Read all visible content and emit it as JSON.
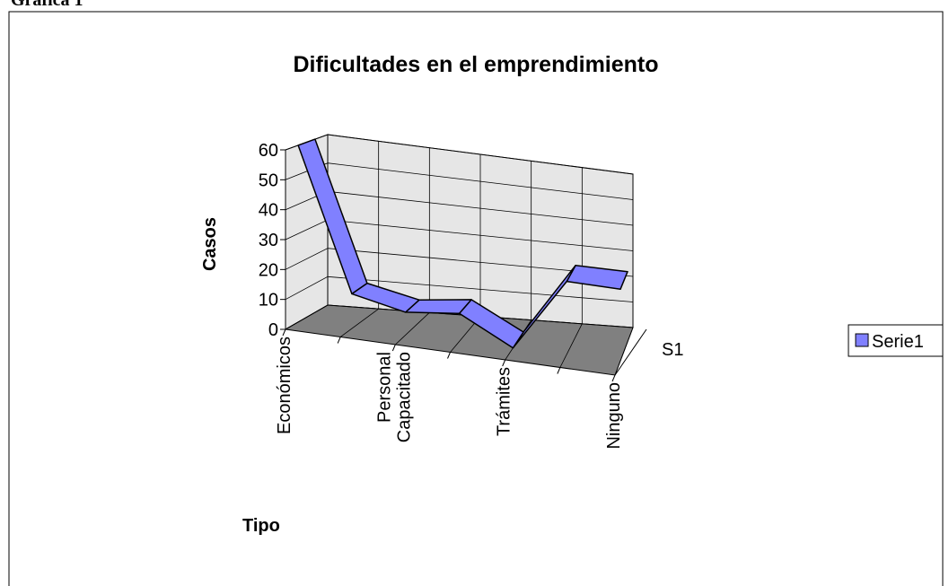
{
  "caption": "Gráfica 1",
  "chart_data": {
    "type": "line3d",
    "title": "Dificultades en el emprendimiento",
    "y_label": "Casos",
    "x_label": "Tipo",
    "categories": [
      "Económicos",
      null,
      "Personal Capacitado",
      null,
      "Trámites",
      null,
      "Ninguno"
    ],
    "series": [
      {
        "name": "Serie1",
        "color": "#8080ff",
        "values": [
          60,
          12,
          8,
          10,
          0,
          27,
          27
        ]
      }
    ],
    "zcategories": [
      "S1"
    ],
    "ylim": [
      0,
      60
    ],
    "yticks": [
      0,
      10,
      20,
      30,
      40,
      50,
      60
    ],
    "grid": true,
    "legend": "right",
    "floor_color": "#808080",
    "wall_color": "#e6e6e6"
  }
}
